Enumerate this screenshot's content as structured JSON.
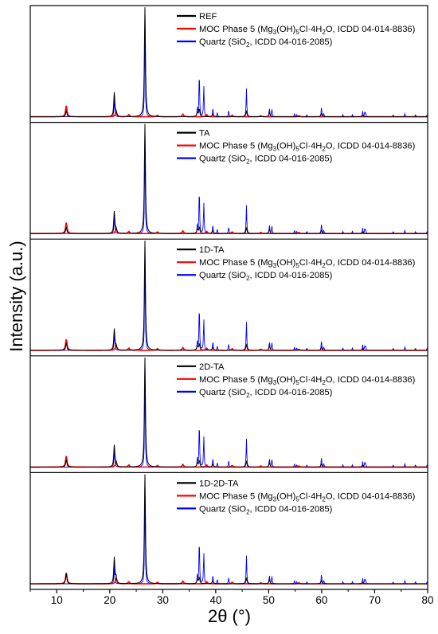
{
  "chart_data": {
    "type": "line",
    "xlabel_main": "2θ",
    "xlabel_unit": "(°)",
    "ylabel": "Intensity (a.u.)",
    "xlim": [
      5,
      80
    ],
    "xticks": [
      10,
      20,
      30,
      40,
      50,
      60,
      70,
      80
    ],
    "colors": {
      "sample": "#000000",
      "moc": "#ff0000",
      "quartz": "#0000ff"
    },
    "legend_placement": "top-right (each panel)",
    "legend_moc_parts": [
      "MOC Phase 5 (Mg",
      "3",
      "(OH)",
      "5",
      "Cl·4H",
      "2",
      "O, ICDD 04-014-8836)"
    ],
    "legend_quartz_parts": [
      "Quartz (SiO",
      "2",
      ", ICDD 04-016-2085)"
    ],
    "moc_peaks": [
      {
        "x": 11.8,
        "y": 0.1
      },
      {
        "x": 21.2,
        "y": 0.05
      },
      {
        "x": 23.6,
        "y": 0.02
      },
      {
        "x": 29.0,
        "y": 0.015
      },
      {
        "x": 33.8,
        "y": 0.025
      },
      {
        "x": 38.3,
        "y": 0.02
      },
      {
        "x": 43.1,
        "y": 0.015
      },
      {
        "x": 48.5,
        "y": 0.01
      },
      {
        "x": 55.7,
        "y": 0.01
      }
    ],
    "quartz_peaks": [
      {
        "x": 20.86,
        "y": 0.2
      },
      {
        "x": 26.64,
        "y": 1.0
      },
      {
        "x": 36.54,
        "y": 0.08
      },
      {
        "x": 36.9,
        "y": 0.42
      },
      {
        "x": 37.75,
        "y": 0.29
      },
      {
        "x": 39.46,
        "y": 0.08
      },
      {
        "x": 40.3,
        "y": 0.04
      },
      {
        "x": 42.45,
        "y": 0.06
      },
      {
        "x": 45.8,
        "y": 0.26
      },
      {
        "x": 50.14,
        "y": 0.08
      },
      {
        "x": 50.6,
        "y": 0.07
      },
      {
        "x": 54.87,
        "y": 0.03
      },
      {
        "x": 55.3,
        "y": 0.02
      },
      {
        "x": 57.2,
        "y": 0.02
      },
      {
        "x": 59.96,
        "y": 0.09
      },
      {
        "x": 60.4,
        "y": 0.03
      },
      {
        "x": 64.0,
        "y": 0.02
      },
      {
        "x": 65.8,
        "y": 0.02
      },
      {
        "x": 67.74,
        "y": 0.05
      },
      {
        "x": 68.14,
        "y": 0.04
      },
      {
        "x": 68.3,
        "y": 0.03
      },
      {
        "x": 73.5,
        "y": 0.02
      },
      {
        "x": 75.7,
        "y": 0.03
      },
      {
        "x": 77.7,
        "y": 0.02
      },
      {
        "x": 79.9,
        "y": 0.02
      }
    ],
    "series": [
      {
        "name": "REF",
        "peaks": [
          {
            "x": 11.8,
            "y": 0.06
          },
          {
            "x": 20.86,
            "y": 0.22
          },
          {
            "x": 21.2,
            "y": 0.04
          },
          {
            "x": 26.64,
            "y": 1.0
          },
          {
            "x": 36.54,
            "y": 0.04
          },
          {
            "x": 36.9,
            "y": 0.07
          },
          {
            "x": 39.46,
            "y": 0.03
          },
          {
            "x": 45.8,
            "y": 0.05
          },
          {
            "x": 50.14,
            "y": 0.04
          },
          {
            "x": 59.96,
            "y": 0.03
          },
          {
            "x": 67.74,
            "y": 0.015
          }
        ]
      },
      {
        "name": "TA",
        "peaks": [
          {
            "x": 11.8,
            "y": 0.06
          },
          {
            "x": 20.86,
            "y": 0.2
          },
          {
            "x": 21.2,
            "y": 0.04
          },
          {
            "x": 26.64,
            "y": 1.0
          },
          {
            "x": 36.54,
            "y": 0.04
          },
          {
            "x": 36.9,
            "y": 0.06
          },
          {
            "x": 39.46,
            "y": 0.03
          },
          {
            "x": 45.8,
            "y": 0.05
          },
          {
            "x": 50.14,
            "y": 0.04
          },
          {
            "x": 59.96,
            "y": 0.03
          },
          {
            "x": 67.74,
            "y": 0.015
          }
        ]
      },
      {
        "name": "1D-TA",
        "peaks": [
          {
            "x": 11.8,
            "y": 0.07
          },
          {
            "x": 20.86,
            "y": 0.19
          },
          {
            "x": 21.2,
            "y": 0.04
          },
          {
            "x": 26.64,
            "y": 1.0
          },
          {
            "x": 36.54,
            "y": 0.04
          },
          {
            "x": 36.9,
            "y": 0.06
          },
          {
            "x": 39.46,
            "y": 0.03
          },
          {
            "x": 45.8,
            "y": 0.05
          },
          {
            "x": 50.14,
            "y": 0.04
          },
          {
            "x": 59.96,
            "y": 0.03
          },
          {
            "x": 67.74,
            "y": 0.015
          }
        ]
      },
      {
        "name": "2D-TA",
        "peaks": [
          {
            "x": 11.8,
            "y": 0.07
          },
          {
            "x": 20.86,
            "y": 0.2
          },
          {
            "x": 21.2,
            "y": 0.04
          },
          {
            "x": 26.64,
            "y": 1.0
          },
          {
            "x": 36.54,
            "y": 0.04
          },
          {
            "x": 36.9,
            "y": 0.06
          },
          {
            "x": 39.46,
            "y": 0.03
          },
          {
            "x": 45.8,
            "y": 0.05
          },
          {
            "x": 50.14,
            "y": 0.04
          },
          {
            "x": 59.96,
            "y": 0.03
          },
          {
            "x": 67.74,
            "y": 0.015
          }
        ]
      },
      {
        "name": "1D-2D-TA",
        "peaks": [
          {
            "x": 11.8,
            "y": 0.1
          },
          {
            "x": 20.86,
            "y": 0.24
          },
          {
            "x": 21.2,
            "y": 0.06
          },
          {
            "x": 26.64,
            "y": 1.0
          },
          {
            "x": 36.54,
            "y": 0.04
          },
          {
            "x": 36.9,
            "y": 0.06
          },
          {
            "x": 39.46,
            "y": 0.03
          },
          {
            "x": 45.8,
            "y": 0.05
          },
          {
            "x": 50.14,
            "y": 0.04
          },
          {
            "x": 59.96,
            "y": 0.03
          },
          {
            "x": 67.74,
            "y": 0.015
          }
        ]
      }
    ]
  }
}
